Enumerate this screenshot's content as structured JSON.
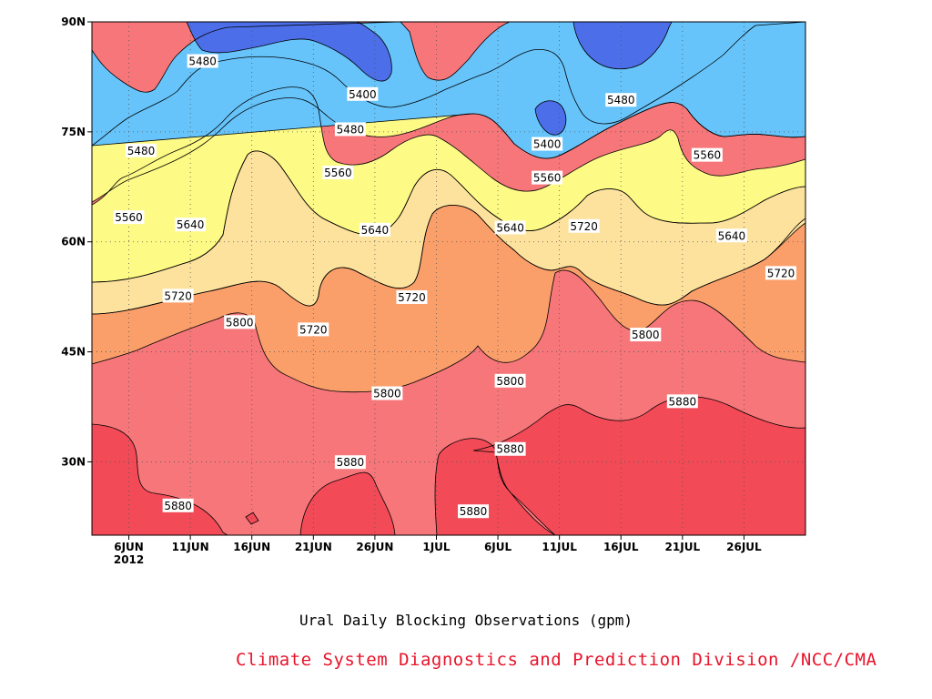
{
  "chart_data": {
    "type": "contour",
    "xlabel": "Ural Daily Blocking Observations (gpm)",
    "x_range": [
      "2012-06-03",
      "2012-07-31"
    ],
    "y_range": [
      20,
      90
    ],
    "x_ticks": [
      {
        "label": "6JUN",
        "date": "2012-06-06"
      },
      {
        "label": "11JUN",
        "date": "2012-06-11"
      },
      {
        "label": "16JUN",
        "date": "2012-06-16"
      },
      {
        "label": "21JUN",
        "date": "2012-06-21"
      },
      {
        "label": "26JUN",
        "date": "2012-06-26"
      },
      {
        "label": "1JUL",
        "date": "2012-07-01"
      },
      {
        "label": "6JUL",
        "date": "2012-07-06"
      },
      {
        "label": "11JUL",
        "date": "2012-07-11"
      },
      {
        "label": "16JUL",
        "date": "2012-07-16"
      },
      {
        "label": "21JUL",
        "date": "2012-07-21"
      },
      {
        "label": "26JUL",
        "date": "2012-07-26"
      }
    ],
    "x_year_label": "2012",
    "y_ticks": [
      {
        "label": "30N",
        "value": 30
      },
      {
        "label": "45N",
        "value": 45
      },
      {
        "label": "60N",
        "value": 60
      },
      {
        "label": "75N",
        "value": 75
      },
      {
        "label": "90N",
        "value": 90
      }
    ],
    "grid": true,
    "levels": [
      5400,
      5480,
      5560,
      5640,
      5720,
      5800,
      5880
    ],
    "fill_colors": {
      "below_5400": "#4c6ee8",
      "5400_5480": "#5b95e6",
      "5480_5560": "#66c4fb",
      "5560_5640": "#fdfa85",
      "5640_5720": "#fde29e",
      "5720_5800": "#fb9f6a",
      "5800_5880": "#f6767a",
      "above_5880": "#f24a57"
    },
    "contour_labels": [
      {
        "text": "5480",
        "date": "2012-06-12",
        "lat": 84.6
      },
      {
        "text": "5400",
        "date": "2012-06-25",
        "lat": 80.1
      },
      {
        "text": "5480",
        "date": "2012-06-24",
        "lat": 75.3
      },
      {
        "text": "5480",
        "date": "2012-06-07",
        "lat": 72.4
      },
      {
        "text": "5560",
        "date": "2012-06-23",
        "lat": 69.4
      },
      {
        "text": "5560",
        "date": "2012-06-06",
        "lat": 63.3
      },
      {
        "text": "5640",
        "date": "2012-06-11",
        "lat": 62.3
      },
      {
        "text": "5640",
        "date": "2012-06-26",
        "lat": 61.6
      },
      {
        "text": "5720",
        "date": "2012-06-10",
        "lat": 52.6
      },
      {
        "text": "5800",
        "date": "2012-06-15",
        "lat": 49.0
      },
      {
        "text": "5720",
        "date": "2012-06-21",
        "lat": 48.0
      },
      {
        "text": "5720",
        "date": "2012-06-29",
        "lat": 52.4
      },
      {
        "text": "5800",
        "date": "2012-06-27",
        "lat": 39.3
      },
      {
        "text": "5880",
        "date": "2012-06-24",
        "lat": 29.9
      },
      {
        "text": "5880",
        "date": "2012-06-10",
        "lat": 24.0
      },
      {
        "text": "5880",
        "date": "2012-07-04",
        "lat": 23.2
      },
      {
        "text": "5880",
        "date": "2012-07-07",
        "lat": 31.7
      },
      {
        "text": "5800",
        "date": "2012-07-07",
        "lat": 41.0
      },
      {
        "text": "5640",
        "date": "2012-07-07",
        "lat": 61.9
      },
      {
        "text": "5560",
        "date": "2012-07-10",
        "lat": 68.7
      },
      {
        "text": "5400",
        "date": "2012-07-10",
        "lat": 73.3
      },
      {
        "text": "5480",
        "date": "2012-07-16",
        "lat": 79.3
      },
      {
        "text": "5720",
        "date": "2012-07-13",
        "lat": 62.1
      },
      {
        "text": "5800",
        "date": "2012-07-18",
        "lat": 47.3
      },
      {
        "text": "5880",
        "date": "2012-07-21",
        "lat": 38.2
      },
      {
        "text": "5560",
        "date": "2012-07-23",
        "lat": 71.8
      },
      {
        "text": "5640",
        "date": "2012-07-25",
        "lat": 60.8
      },
      {
        "text": "5720",
        "date": "2012-07-29",
        "lat": 55.7
      }
    ]
  },
  "credit": "Climate System Diagnostics and Prediction Division /NCC/CMA"
}
